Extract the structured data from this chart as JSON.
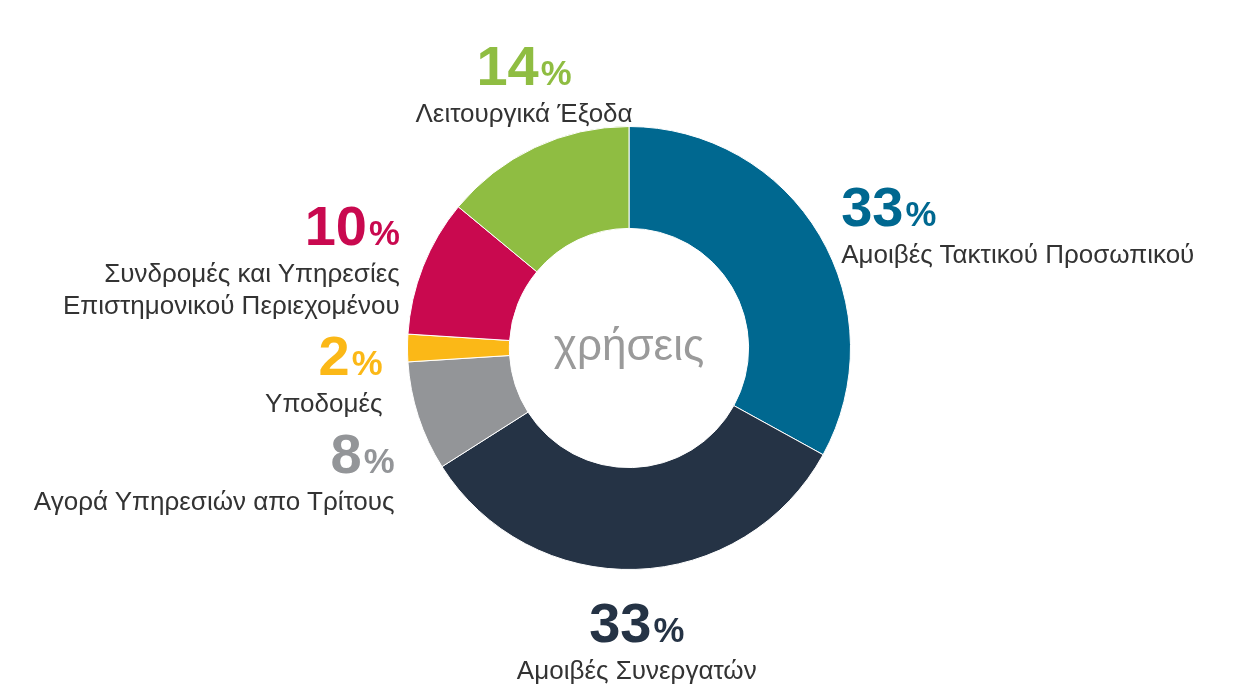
{
  "chart_data": {
    "type": "donut",
    "title": "χρήσεις",
    "categories": [
      "Αμοιβές Τακτικού Προσωπικού",
      "Αμοιβές Συνεργατών",
      "Αγορά Υπηρεσιών απο Τρίτους",
      "Υποδομές",
      "Συνδρομές και Υπηρεσίες Επιστημονικού Περιεχομένου",
      "Λειτουργικά Έξοδα"
    ],
    "values": [
      33,
      33,
      8,
      2,
      10,
      14
    ],
    "colors": [
      "#006890",
      "#253345",
      "#939598",
      "#fbb817",
      "#c9094f",
      "#8fbd42"
    ],
    "value_labels": [
      "33%",
      "33%",
      "8%",
      "2%",
      "10%",
      "14%"
    ],
    "legend": false
  }
}
